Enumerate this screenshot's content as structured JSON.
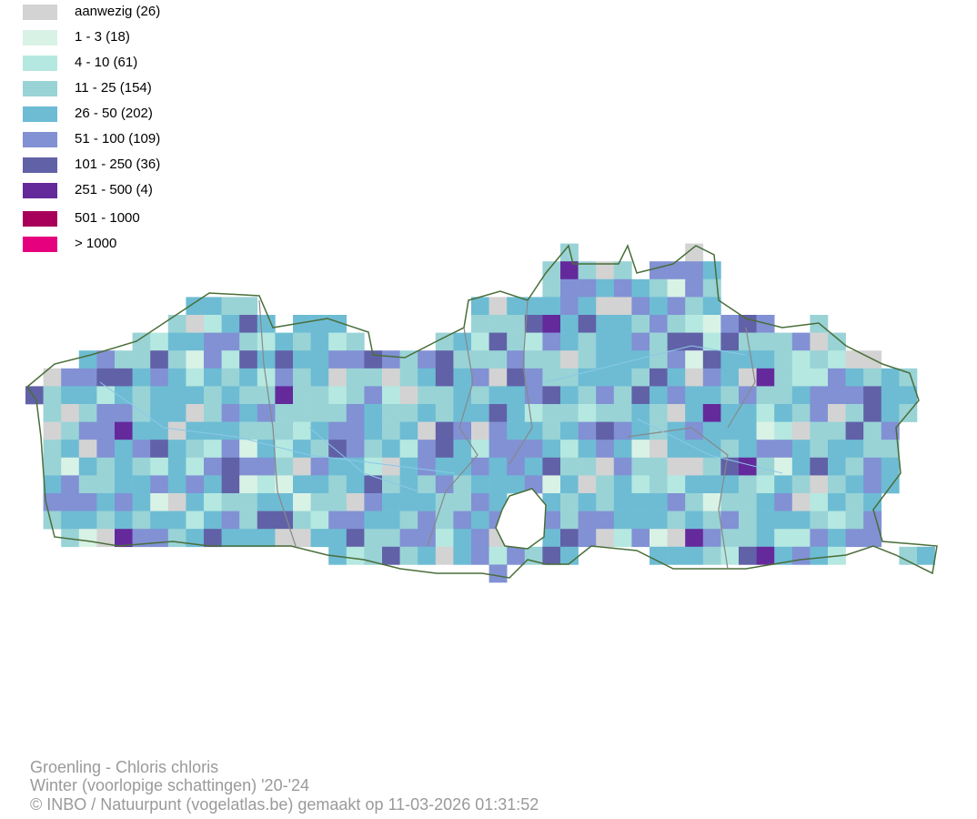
{
  "legend": [
    {
      "label": "aanwezig (26)",
      "color": "#d3d3d3"
    },
    {
      "label": "1 - 3 (18)",
      "color": "#d9f2e6"
    },
    {
      "label": "4 - 10 (61)",
      "color": "#b5e8e0"
    },
    {
      "label": "11 - 25 (154)",
      "color": "#99d3d6"
    },
    {
      "label": "26 - 50 (202)",
      "color": "#6dbcd4"
    },
    {
      "label": "51 - 100 (109)",
      "color": "#8191d4"
    },
    {
      "label": "101 - 250 (36)",
      "color": "#6161a8"
    },
    {
      "label": "251 - 500 (4)",
      "color": "#642a9c"
    },
    {
      "label": "501 - 1000",
      "color": "#a8005a"
    },
    {
      "label": "> 1000",
      "color": "#e6007e"
    }
  ],
  "footer": {
    "species": "Groenling - Chloris chloris",
    "period": "Winter (voorlopige schattingen) '20-'24",
    "credit": "© INBO / Natuurpunt (vogelatlas.be) gemaakt op 11-03-2026 01:31:52"
  }
}
